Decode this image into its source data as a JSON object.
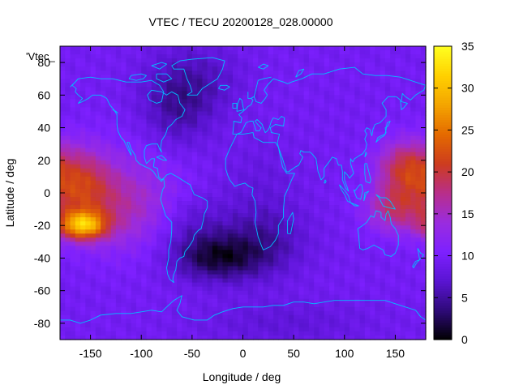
{
  "chart_data": {
    "type": "heatmap",
    "title": "VTEC / TECU 20200128_028.00000",
    "xlabel": "Longitude / deg",
    "ylabel": "Latitude / deg",
    "key_label": "'Vtec_",
    "xlim": [
      -180,
      180
    ],
    "ylim": [
      -90,
      90
    ],
    "x_ticks": [
      -150,
      -100,
      -50,
      0,
      50,
      100,
      150
    ],
    "y_ticks": [
      -80,
      -60,
      -40,
      -20,
      0,
      20,
      40,
      60,
      80
    ],
    "colorbar": {
      "range": [
        0,
        35
      ],
      "ticks": [
        0,
        5,
        10,
        15,
        20,
        25,
        30,
        35
      ]
    },
    "colormap": [
      "#000000",
      "#2e0a78",
      "#5a14d2",
      "#7d20ff",
      "#9a2cdf",
      "#b82e8a",
      "#cd3c1e",
      "#e46a00",
      "#f4a400",
      "#ffd000",
      "#ffff20"
    ],
    "coastline_color": "#00bfff",
    "field": {
      "background": 9.5,
      "features": [
        {
          "lon": -158,
          "lat": -20,
          "sigma_lon": 16,
          "sigma_lat": 6,
          "amp": 17
        },
        {
          "lon": -160,
          "lat": 5,
          "sigma_lon": 22,
          "sigma_lat": 16,
          "amp": 9
        },
        {
          "lon": -125,
          "lat": -10,
          "sigma_lon": 35,
          "sigma_lat": 18,
          "amp": 5
        },
        {
          "lon": 160,
          "lat": 15,
          "sigma_lon": 20,
          "sigma_lat": 12,
          "amp": 10
        },
        {
          "lon": 150,
          "lat": -10,
          "sigma_lon": 20,
          "sigma_lat": 10,
          "amp": 8
        },
        {
          "lon": -90,
          "lat": 5,
          "sigma_lon": 40,
          "sigma_lat": 25,
          "amp": 2
        },
        {
          "lon": -25,
          "lat": -40,
          "sigma_lon": 30,
          "sigma_lat": 10,
          "amp": -7
        },
        {
          "lon": 20,
          "lat": -30,
          "sigma_lon": 30,
          "sigma_lat": 15,
          "amp": -4
        },
        {
          "lon": -50,
          "lat": -20,
          "sigma_lon": 25,
          "sigma_lat": 15,
          "amp": -3
        },
        {
          "lon": -65,
          "lat": 55,
          "sigma_lon": 25,
          "sigma_lat": 20,
          "amp": -5
        },
        {
          "lon": -30,
          "lat": 70,
          "sigma_lon": 25,
          "sigma_lat": 15,
          "amp": -2
        },
        {
          "lon": 15,
          "lat": 5,
          "sigma_lon": 30,
          "sigma_lat": 20,
          "amp": -1.5
        },
        {
          "lon": 40,
          "lat": -80,
          "sigma_lon": 60,
          "sigma_lat": 10,
          "amp": -2
        }
      ]
    }
  }
}
